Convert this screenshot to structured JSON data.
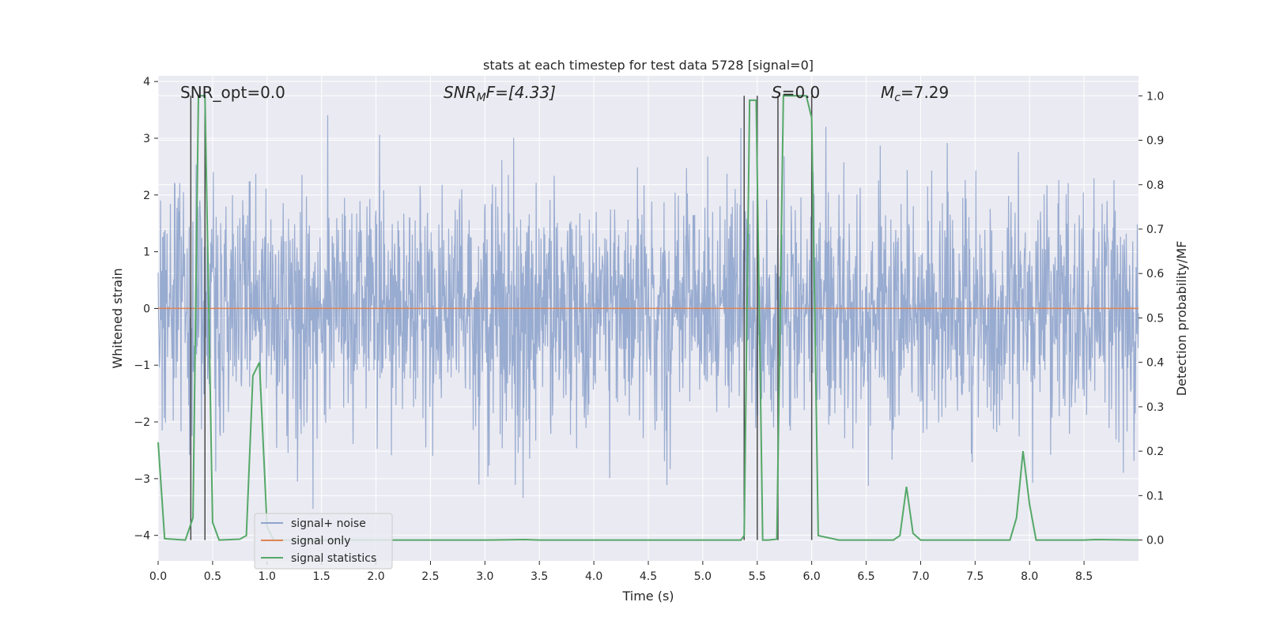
{
  "chart_data": {
    "type": "line",
    "title": "stats at each timestep for test data 5728 [signal=0]",
    "xlabel": "Time (s)",
    "ylabel_left": "Whitened strain",
    "ylabel_right": "Detection probability/MF",
    "xlim": [
      0,
      9.0
    ],
    "ylim_left": [
      -4.45,
      4.1
    ],
    "ylim_right": [
      -0.047,
      1.045
    ],
    "xticks": [
      "0.0",
      "0.5",
      "1.0",
      "1.5",
      "2.0",
      "2.5",
      "3.0",
      "3.5",
      "4.0",
      "4.5",
      "5.0",
      "5.5",
      "6.0",
      "6.5",
      "7.0",
      "7.5",
      "8.0",
      "8.5"
    ],
    "yticks_left": [
      "4",
      "3",
      "2",
      "1",
      "0",
      "−1",
      "−2",
      "−3",
      "−4"
    ],
    "yticks_right": [
      "1.0",
      "0.9",
      "0.8",
      "0.7",
      "0.6",
      "0.5",
      "0.4",
      "0.3",
      "0.2",
      "0.1",
      "0.0"
    ],
    "grid": true,
    "legend_position": "lower-left",
    "annotations": {
      "snr_opt": "SNR_opt=0.0",
      "snr_mf_main": "SNR",
      "snr_mf_sub": "M",
      "snr_mf_rest": "F=[4.33]",
      "s_main": "S",
      "s_rest": "=0.0",
      "mc_main": "M",
      "mc_sub": "c",
      "mc_rest": "=7.29"
    },
    "series": [
      {
        "name": "signal+ noise",
        "color": "#8fa4cc",
        "description_values": "whitened strain noise, approx between -3.6 and 3.7, mostly within ±2"
      },
      {
        "name": "signal only",
        "color": "#dd8452",
        "x": [
          0,
          9.0
        ],
        "y": [
          0,
          0
        ]
      },
      {
        "name": "signal statistics",
        "color": "#55a868",
        "x": [
          0.0,
          0.06,
          0.25,
          0.32,
          0.37,
          0.43,
          0.5,
          0.56,
          0.75,
          0.81,
          0.87,
          0.93,
          1.0,
          1.06,
          1.5,
          3.0,
          3.37,
          3.5,
          5.0,
          5.35,
          5.38,
          5.43,
          5.49,
          5.55,
          5.6,
          5.68,
          5.74,
          5.8,
          5.95,
          6.0,
          6.06,
          6.25,
          6.75,
          6.81,
          6.87,
          6.93,
          7.0,
          7.5,
          7.82,
          7.88,
          7.94,
          8.0,
          8.06,
          8.5,
          8.6,
          9.0
        ],
        "y": [
          0.22,
          0.003,
          0.0,
          0.05,
          1.0,
          1.0,
          0.04,
          0.0,
          0.002,
          0.01,
          0.37,
          0.4,
          0.03,
          0.0,
          0.0,
          0.0,
          0.001,
          0.0,
          0.0,
          0.0,
          0.01,
          0.99,
          0.99,
          0.0,
          0.0,
          0.002,
          1.0,
          1.0,
          1.0,
          0.95,
          0.01,
          0.0,
          0.0,
          0.01,
          0.12,
          0.015,
          0.0,
          0.0,
          0.0,
          0.05,
          0.2,
          0.08,
          0.0,
          0.0,
          0.001,
          0.0
        ]
      }
    ],
    "vertical_markers_x": [
      0.3,
      0.43,
      5.38,
      5.5,
      5.69,
      6.0
    ],
    "vertical_markers_top_right": 1.0,
    "legend": [
      "signal+ noise",
      "signal only",
      "signal statistics"
    ]
  }
}
